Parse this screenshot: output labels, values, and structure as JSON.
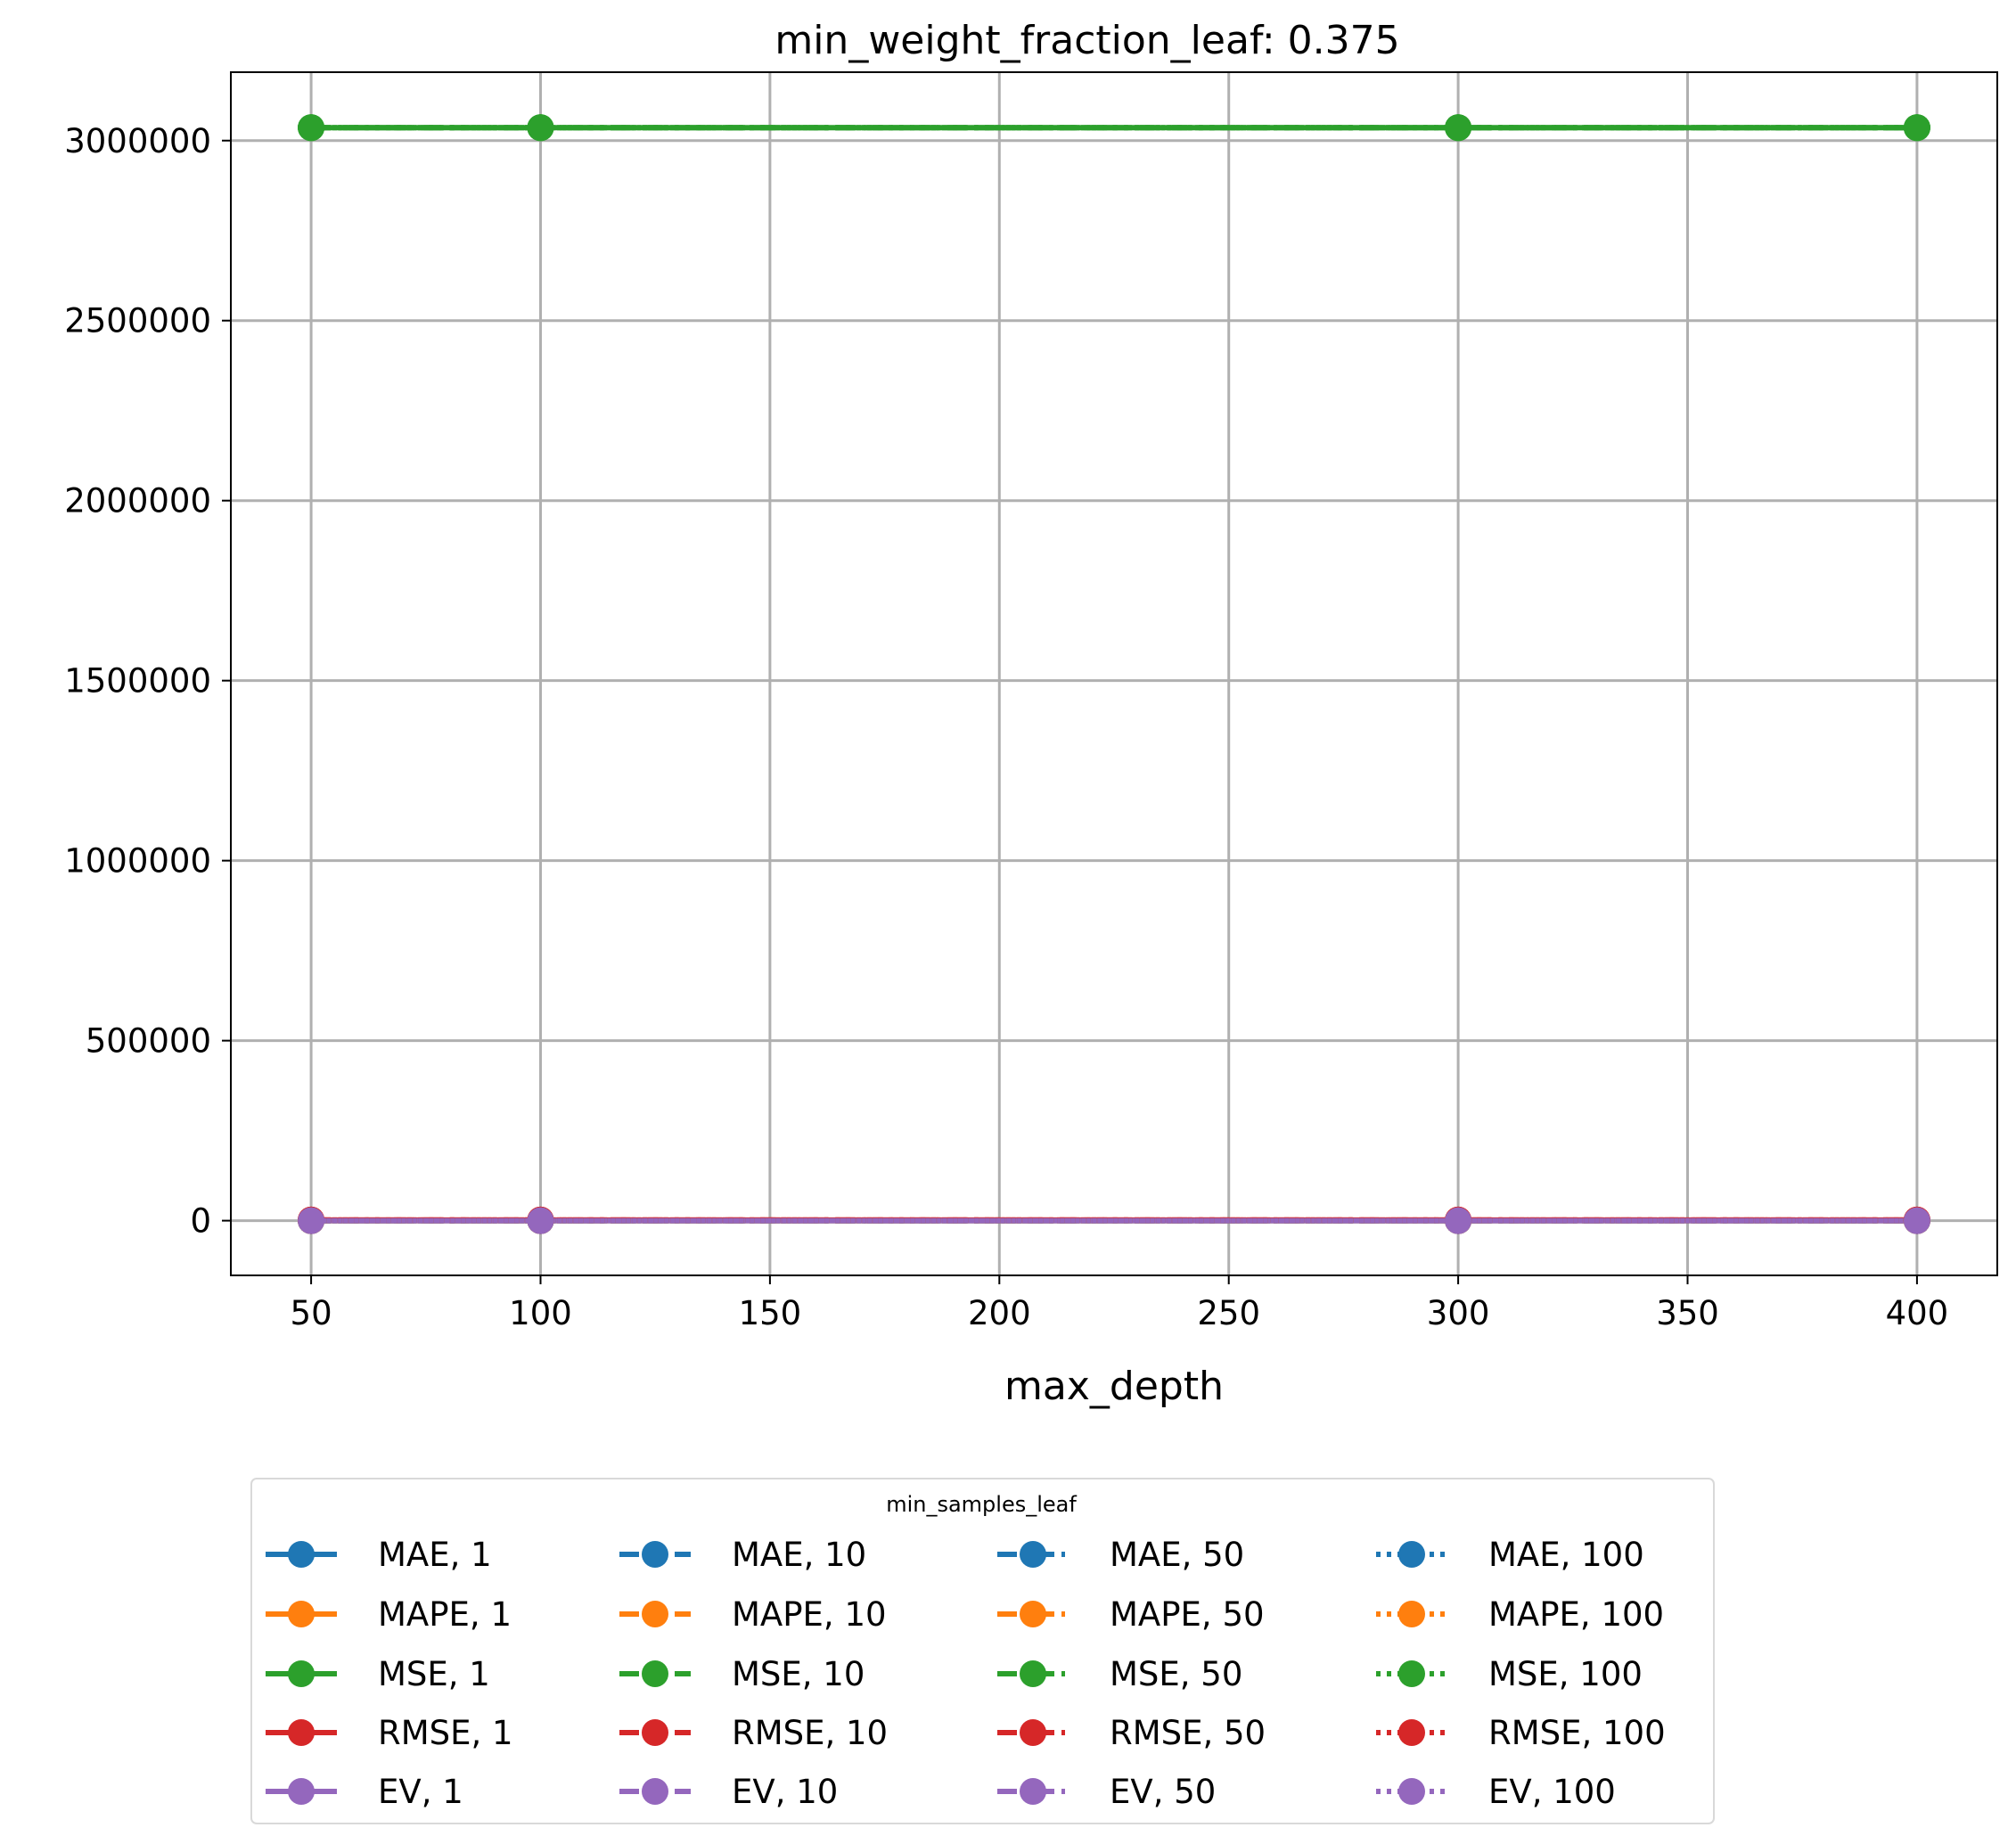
{
  "chart_data": {
    "type": "line",
    "title": "min_weight_fraction_leaf: 0.375",
    "xlabel": "max_depth",
    "ylabel": "",
    "x": [
      50,
      100,
      300,
      400
    ],
    "xlim": [
      32.5,
      417.5
    ],
    "ylim": [
      -152000,
      3190000
    ],
    "xticks": [
      50,
      100,
      150,
      200,
      250,
      300,
      350,
      400
    ],
    "yticks": [
      0,
      500000,
      1000000,
      1500000,
      2000000,
      2500000,
      3000000
    ],
    "grid": true,
    "legend": {
      "title": "min_samples_leaf",
      "placement": "below",
      "columns": 4
    },
    "colors": {
      "MAE": "#1f77b4",
      "MAPE": "#ff7f0e",
      "MSE": "#2ca02c",
      "RMSE": "#d62728",
      "EV": "#9467bd"
    },
    "series": [
      {
        "name": "MAE, 1",
        "metric": "MAE",
        "style": "solid",
        "values": [
          0,
          0,
          0,
          0
        ]
      },
      {
        "name": "MAPE, 1",
        "metric": "MAPE",
        "style": "solid",
        "values": [
          0,
          0,
          0,
          0
        ]
      },
      {
        "name": "MSE, 1",
        "metric": "MSE",
        "style": "solid",
        "values": [
          3036000,
          3036000,
          3036000,
          3036000
        ]
      },
      {
        "name": "RMSE, 1",
        "metric": "RMSE",
        "style": "solid",
        "values": [
          1742,
          1742,
          1742,
          1742
        ]
      },
      {
        "name": "EV, 1",
        "metric": "EV",
        "style": "solid",
        "values": [
          0,
          0,
          0,
          0
        ]
      },
      {
        "name": "MAE, 10",
        "metric": "MAE",
        "style": "dashed",
        "values": [
          0,
          0,
          0,
          0
        ]
      },
      {
        "name": "MAPE, 10",
        "metric": "MAPE",
        "style": "dashed",
        "values": [
          0,
          0,
          0,
          0
        ]
      },
      {
        "name": "MSE, 10",
        "metric": "MSE",
        "style": "dashed",
        "values": [
          3036000,
          3036000,
          3036000,
          3036000
        ]
      },
      {
        "name": "RMSE, 10",
        "metric": "RMSE",
        "style": "dashed",
        "values": [
          1742,
          1742,
          1742,
          1742
        ]
      },
      {
        "name": "EV, 10",
        "metric": "EV",
        "style": "dashed",
        "values": [
          0,
          0,
          0,
          0
        ]
      },
      {
        "name": "MAE, 50",
        "metric": "MAE",
        "style": "dashdot",
        "values": [
          0,
          0,
          0,
          0
        ]
      },
      {
        "name": "MAPE, 50",
        "metric": "MAPE",
        "style": "dashdot",
        "values": [
          0,
          0,
          0,
          0
        ]
      },
      {
        "name": "MSE, 50",
        "metric": "MSE",
        "style": "dashdot",
        "values": [
          3036000,
          3036000,
          3036000,
          3036000
        ]
      },
      {
        "name": "RMSE, 50",
        "metric": "RMSE",
        "style": "dashdot",
        "values": [
          1742,
          1742,
          1742,
          1742
        ]
      },
      {
        "name": "EV, 50",
        "metric": "EV",
        "style": "dashdot",
        "values": [
          0,
          0,
          0,
          0
        ]
      },
      {
        "name": "MAE, 100",
        "metric": "MAE",
        "style": "dotted",
        "values": [
          0,
          0,
          0,
          0
        ]
      },
      {
        "name": "MAPE, 100",
        "metric": "MAPE",
        "style": "dotted",
        "values": [
          0,
          0,
          0,
          0
        ]
      },
      {
        "name": "MSE, 100",
        "metric": "MSE",
        "style": "dotted",
        "values": [
          3036000,
          3036000,
          3036000,
          3036000
        ]
      },
      {
        "name": "RMSE, 100",
        "metric": "RMSE",
        "style": "dotted",
        "values": [
          1742,
          1742,
          1742,
          1742
        ]
      },
      {
        "name": "EV, 100",
        "metric": "EV",
        "style": "dotted",
        "values": [
          0,
          0,
          0,
          0
        ]
      }
    ]
  }
}
